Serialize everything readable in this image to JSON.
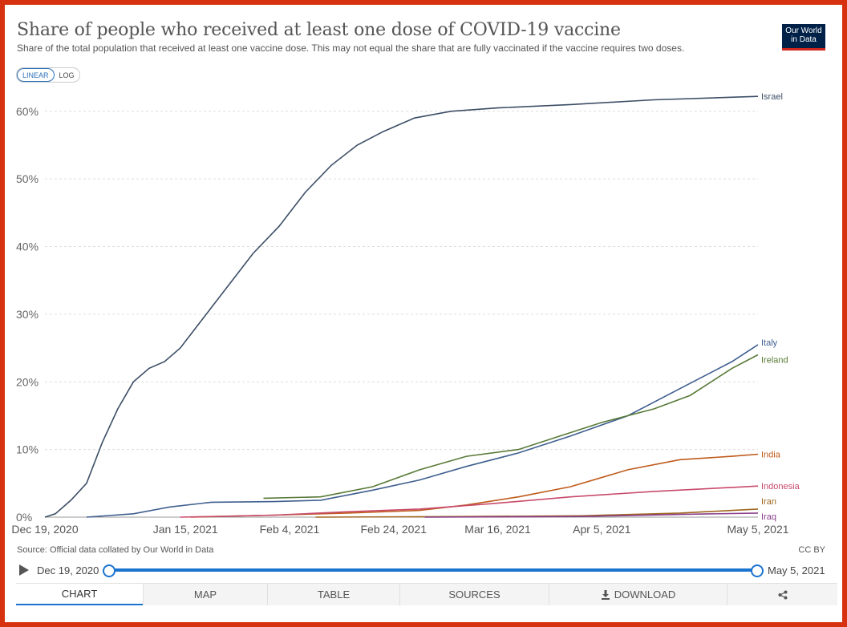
{
  "header": {
    "title": "Share of people who received at least one dose of COVID-19 vaccine",
    "subtitle": "Share of the total population that received at least one vaccine dose. This may not equal the share that are fully vaccinated if the vaccine requires two doses.",
    "logo_line1": "Our World",
    "logo_line2": "in Data"
  },
  "scale_toggle": {
    "linear": "LINEAR",
    "log": "LOG",
    "selected": "linear"
  },
  "chart_data": {
    "type": "line",
    "title": "Share of people who received at least one dose of COVID-19 vaccine",
    "xlabel": "",
    "ylabel": "",
    "xlim": [
      "2020-12-19",
      "2021-05-05"
    ],
    "ylim": [
      0,
      65
    ],
    "yticks": [
      0,
      10,
      20,
      30,
      40,
      50,
      60
    ],
    "ytick_labels": [
      "0%",
      "10%",
      "20%",
      "30%",
      "40%",
      "50%",
      "60%"
    ],
    "xticks": [
      "2020-12-19",
      "2021-01-15",
      "2021-02-04",
      "2021-02-24",
      "2021-03-16",
      "2021-04-05",
      "2021-05-05"
    ],
    "xtick_labels": [
      "Dec 19, 2020",
      "Jan 15, 2021",
      "Feb 4, 2021",
      "Feb 24, 2021",
      "Mar 16, 2021",
      "Apr 5, 2021",
      "May 5, 2021"
    ],
    "grid": "horizontal dashed",
    "legend": "inline labels at right end of lines",
    "series": [
      {
        "name": "Israel",
        "color": "#3c4e66",
        "points": [
          [
            "2020-12-19",
            0
          ],
          [
            "2020-12-21",
            0.5
          ],
          [
            "2020-12-24",
            2.5
          ],
          [
            "2020-12-27",
            5
          ],
          [
            "2020-12-30",
            11
          ],
          [
            "2021-01-02",
            16
          ],
          [
            "2021-01-05",
            20
          ],
          [
            "2021-01-08",
            22
          ],
          [
            "2021-01-11",
            23
          ],
          [
            "2021-01-14",
            25
          ],
          [
            "2021-01-17",
            28
          ],
          [
            "2021-01-20",
            31
          ],
          [
            "2021-01-24",
            35
          ],
          [
            "2021-01-28",
            39
          ],
          [
            "2021-02-02",
            43
          ],
          [
            "2021-02-07",
            48
          ],
          [
            "2021-02-12",
            52
          ],
          [
            "2021-02-17",
            55
          ],
          [
            "2021-02-22",
            57
          ],
          [
            "2021-02-28",
            59
          ],
          [
            "2021-03-07",
            60
          ],
          [
            "2021-03-16",
            60.5
          ],
          [
            "2021-03-30",
            61
          ],
          [
            "2021-04-15",
            61.7
          ],
          [
            "2021-05-05",
            62.2
          ]
        ]
      },
      {
        "name": "Italy",
        "color": "#3f5f8f",
        "points": [
          [
            "2020-12-27",
            0
          ],
          [
            "2021-01-05",
            0.5
          ],
          [
            "2021-01-12",
            1.5
          ],
          [
            "2021-01-20",
            2.2
          ],
          [
            "2021-02-01",
            2.3
          ],
          [
            "2021-02-10",
            2.5
          ],
          [
            "2021-02-20",
            4
          ],
          [
            "2021-03-01",
            5.5
          ],
          [
            "2021-03-10",
            7.5
          ],
          [
            "2021-03-20",
            9.5
          ],
          [
            "2021-03-30",
            12
          ],
          [
            "2021-04-10",
            15
          ],
          [
            "2021-04-20",
            19
          ],
          [
            "2021-04-30",
            23
          ],
          [
            "2021-05-05",
            25.5
          ]
        ]
      },
      {
        "name": "Ireland",
        "color": "#587a37",
        "points": [
          [
            "2021-01-30",
            2.8
          ],
          [
            "2021-02-10",
            3
          ],
          [
            "2021-02-20",
            4.5
          ],
          [
            "2021-03-01",
            7
          ],
          [
            "2021-03-10",
            9
          ],
          [
            "2021-03-20",
            10
          ],
          [
            "2021-03-30",
            12.5
          ],
          [
            "2021-04-05",
            14
          ],
          [
            "2021-04-15",
            16
          ],
          [
            "2021-04-22",
            18
          ],
          [
            "2021-04-30",
            22
          ],
          [
            "2021-05-05",
            24
          ]
        ]
      },
      {
        "name": "India",
        "color": "#bf5a1b",
        "points": [
          [
            "2021-01-16",
            0
          ],
          [
            "2021-02-01",
            0.3
          ],
          [
            "2021-02-15",
            0.6
          ],
          [
            "2021-03-01",
            1
          ],
          [
            "2021-03-10",
            1.8
          ],
          [
            "2021-03-20",
            3
          ],
          [
            "2021-03-30",
            4.5
          ],
          [
            "2021-04-10",
            7
          ],
          [
            "2021-04-20",
            8.5
          ],
          [
            "2021-04-30",
            9
          ],
          [
            "2021-05-05",
            9.3
          ]
        ]
      },
      {
        "name": "Indonesia",
        "color": "#c84a6b",
        "points": [
          [
            "2021-01-14",
            0
          ],
          [
            "2021-02-01",
            0.3
          ],
          [
            "2021-02-15",
            0.8
          ],
          [
            "2021-03-01",
            1.2
          ],
          [
            "2021-03-15",
            2
          ],
          [
            "2021-03-30",
            3
          ],
          [
            "2021-04-15",
            3.8
          ],
          [
            "2021-04-30",
            4.4
          ],
          [
            "2021-05-05",
            4.6
          ]
        ]
      },
      {
        "name": "Iran",
        "color": "#a0661f",
        "points": [
          [
            "2021-02-09",
            0
          ],
          [
            "2021-03-10",
            0.1
          ],
          [
            "2021-04-01",
            0.2
          ],
          [
            "2021-04-20",
            0.6
          ],
          [
            "2021-05-05",
            1.2
          ]
        ]
      },
      {
        "name": "Iraq",
        "color": "#8a3f8a",
        "points": [
          [
            "2021-03-02",
            0
          ],
          [
            "2021-04-01",
            0.1
          ],
          [
            "2021-04-20",
            0.4
          ],
          [
            "2021-05-05",
            0.6
          ]
        ]
      }
    ]
  },
  "footer": {
    "source": "Source: Official data collated by Our World in Data",
    "license": "CC BY"
  },
  "timeline": {
    "start_label": "Dec 19, 2020",
    "end_label": "May 5, 2021",
    "start_fraction": 0,
    "end_fraction": 1
  },
  "tabs": [
    {
      "label": "CHART",
      "icon": ""
    },
    {
      "label": "MAP",
      "icon": ""
    },
    {
      "label": "TABLE",
      "icon": ""
    },
    {
      "label": "SOURCES",
      "icon": ""
    },
    {
      "label": "DOWNLOAD",
      "icon": "download-icon"
    },
    {
      "label": "",
      "icon": "share-icon"
    }
  ]
}
